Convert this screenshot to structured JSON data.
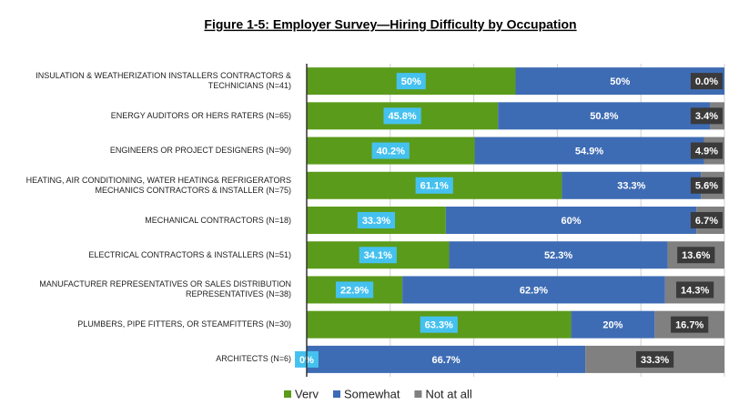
{
  "chart_data": {
    "type": "stacked_barh",
    "title": "Figure 1-5: Employer Survey—Hiring Difficulty by Occupation",
    "categories": [
      "INSULATION & WEATHERIZATION INSTALLERS CONTRACTORS & TECHNICIANS (N=41)",
      "ENERGY AUDITORS OR HERS RATERS (N=65)",
      "ENGINEERS OR PROJECT DESIGNERS (N=90)",
      "HEATING, AIR CONDITIONING, WATER HEATING& REFRIGERATORS MECHANICS CONTRACTORS & INSTALLER (N=75)",
      "MECHANICAL CONTRACTORS (N=18)",
      "ELECTRICAL CONTRACTORS & INSTALLERS (N=51)",
      "MANUFACTURER REPRESENTATIVES OR SALES DISTRIBUTION REPRESENTATIVES (N=38)",
      "PLUMBERS, PIPE FITTERS, OR STEAMFITTERS (N=30)",
      "ARCHITECTS (N=6)"
    ],
    "series": [
      {
        "name": "Verv",
        "color": "#5b9b1b",
        "values": [
          50,
          45.8,
          40.2,
          61.1,
          33.3,
          34.1,
          22.9,
          63.3,
          0
        ],
        "value_labels": [
          "50%",
          "45.8%",
          "40.2%",
          "61.1%",
          "33.3%",
          "34.1%",
          "22.9%",
          "63.3%",
          "0%"
        ]
      },
      {
        "name": "Somewhat",
        "color": "#3e6cb4",
        "values": [
          50,
          50.8,
          54.9,
          33.3,
          60,
          52.3,
          62.9,
          20,
          66.7
        ],
        "value_labels": [
          "50%",
          "50.8%",
          "54.9%",
          "33.3%",
          "60%",
          "52.3%",
          "62.9%",
          "20%",
          "66.7%"
        ]
      },
      {
        "name": "Not at all",
        "color": "#808080",
        "values": [
          0,
          3.4,
          4.9,
          5.6,
          6.7,
          13.6,
          14.3,
          16.7,
          33.3
        ],
        "value_labels": [
          "0.0%",
          "3.4%",
          "4.9%",
          "5.6%",
          "6.7%",
          "13.6%",
          "14.3%",
          "16.7%",
          "33.3%"
        ]
      }
    ],
    "xlim": [
      0,
      100
    ],
    "xticks": [
      0,
      20,
      40,
      60,
      80,
      100
    ],
    "grid": true
  }
}
